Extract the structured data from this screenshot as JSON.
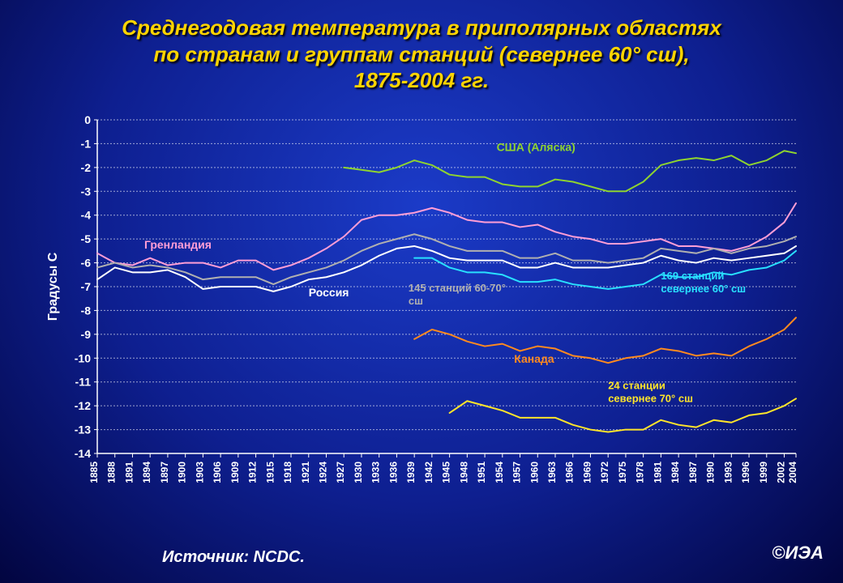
{
  "title_lines": [
    "Среднегодовая температура в приполярных областях",
    "по странам и группам станций (севернее 60° сш),",
    "1875-2004 гг."
  ],
  "source": "Источник: NCDC.",
  "copyright": "©ИЭА",
  "chart": {
    "type": "line",
    "ylabel": "Градусы C",
    "ylabel_color": "#ffffff",
    "ylabel_fontsize": 16,
    "ylim": [
      -14,
      0
    ],
    "ytick_step": 1,
    "ytick_color": "#ffffff",
    "ytick_fontsize": 14,
    "x_start_year": 1885,
    "x_end_year": 2004,
    "xtick_step": 3,
    "xtick_label_end": "2004",
    "xtick_color": "#ffffff",
    "xtick_fontsize": 12,
    "axis_color": "#ffffff",
    "grid_color": "#ffffff",
    "grid_dash": "2 2",
    "grid_width": 1,
    "background": "transparent",
    "line_width": 2,
    "series": [
      {
        "name": "Гренландия",
        "color": "#ff9ed6",
        "label_color": "#ff9ed6",
        "label_x": 1893,
        "label_y": -5.4,
        "label_fontsize": 14,
        "data": [
          [
            1885,
            -5.6
          ],
          [
            1888,
            -6.0
          ],
          [
            1891,
            -6.1
          ],
          [
            1894,
            -5.8
          ],
          [
            1897,
            -6.1
          ],
          [
            1900,
            -6.0
          ],
          [
            1903,
            -6.0
          ],
          [
            1906,
            -6.2
          ],
          [
            1909,
            -5.9
          ],
          [
            1912,
            -5.9
          ],
          [
            1915,
            -6.3
          ],
          [
            1918,
            -6.1
          ],
          [
            1921,
            -5.8
          ],
          [
            1924,
            -5.4
          ],
          [
            1927,
            -4.9
          ],
          [
            1930,
            -4.2
          ],
          [
            1933,
            -4.0
          ],
          [
            1936,
            -4.0
          ],
          [
            1939,
            -3.9
          ],
          [
            1942,
            -3.7
          ],
          [
            1945,
            -3.9
          ],
          [
            1948,
            -4.2
          ],
          [
            1951,
            -4.3
          ],
          [
            1954,
            -4.3
          ],
          [
            1957,
            -4.5
          ],
          [
            1960,
            -4.4
          ],
          [
            1963,
            -4.7
          ],
          [
            1966,
            -4.9
          ],
          [
            1969,
            -5.0
          ],
          [
            1972,
            -5.2
          ],
          [
            1975,
            -5.2
          ],
          [
            1978,
            -5.1
          ],
          [
            1981,
            -5.0
          ],
          [
            1984,
            -5.3
          ],
          [
            1987,
            -5.3
          ],
          [
            1990,
            -5.4
          ],
          [
            1993,
            -5.5
          ],
          [
            1996,
            -5.3
          ],
          [
            1999,
            -4.9
          ],
          [
            2002,
            -4.3
          ],
          [
            2004,
            -3.5
          ]
        ]
      },
      {
        "name": "США (Аляска)",
        "color": "#8fd42f",
        "label_color": "#8fd42f",
        "label_x": 1953,
        "label_y": -1.3,
        "label_fontsize": 14,
        "data": [
          [
            1927,
            -2.0
          ],
          [
            1930,
            -2.1
          ],
          [
            1933,
            -2.2
          ],
          [
            1936,
            -2.0
          ],
          [
            1939,
            -1.7
          ],
          [
            1942,
            -1.9
          ],
          [
            1945,
            -2.3
          ],
          [
            1948,
            -2.4
          ],
          [
            1951,
            -2.4
          ],
          [
            1954,
            -2.7
          ],
          [
            1957,
            -2.8
          ],
          [
            1960,
            -2.8
          ],
          [
            1963,
            -2.5
          ],
          [
            1966,
            -2.6
          ],
          [
            1969,
            -2.8
          ],
          [
            1972,
            -3.0
          ],
          [
            1975,
            -3.0
          ],
          [
            1978,
            -2.6
          ],
          [
            1981,
            -1.9
          ],
          [
            1984,
            -1.7
          ],
          [
            1987,
            -1.6
          ],
          [
            1990,
            -1.7
          ],
          [
            1993,
            -1.5
          ],
          [
            1996,
            -1.9
          ],
          [
            1999,
            -1.7
          ],
          [
            2002,
            -1.3
          ],
          [
            2004,
            -1.4
          ]
        ]
      },
      {
        "name": "Россия",
        "color": "#ffffff",
        "label_color": "#ffffff",
        "label_x": 1921,
        "label_y": -7.4,
        "label_fontsize": 14,
        "data": [
          [
            1885,
            -6.7
          ],
          [
            1888,
            -6.2
          ],
          [
            1891,
            -6.4
          ],
          [
            1894,
            -6.4
          ],
          [
            1897,
            -6.3
          ],
          [
            1900,
            -6.6
          ],
          [
            1903,
            -7.1
          ],
          [
            1906,
            -7.0
          ],
          [
            1909,
            -7.0
          ],
          [
            1912,
            -7.0
          ],
          [
            1915,
            -7.2
          ],
          [
            1918,
            -7.0
          ],
          [
            1921,
            -6.7
          ],
          [
            1924,
            -6.6
          ],
          [
            1927,
            -6.4
          ],
          [
            1930,
            -6.1
          ],
          [
            1933,
            -5.7
          ],
          [
            1936,
            -5.4
          ],
          [
            1939,
            -5.3
          ],
          [
            1942,
            -5.5
          ],
          [
            1945,
            -5.8
          ],
          [
            1948,
            -5.9
          ],
          [
            1951,
            -5.9
          ],
          [
            1954,
            -5.9
          ],
          [
            1957,
            -6.2
          ],
          [
            1960,
            -6.2
          ],
          [
            1963,
            -6.0
          ],
          [
            1966,
            -6.2
          ],
          [
            1969,
            -6.2
          ],
          [
            1972,
            -6.2
          ],
          [
            1975,
            -6.1
          ],
          [
            1978,
            -6.0
          ],
          [
            1981,
            -5.7
          ],
          [
            1984,
            -5.9
          ],
          [
            1987,
            -6.0
          ],
          [
            1990,
            -5.8
          ],
          [
            1993,
            -5.9
          ],
          [
            1996,
            -5.8
          ],
          [
            1999,
            -5.7
          ],
          [
            2002,
            -5.6
          ],
          [
            2004,
            -5.3
          ]
        ]
      },
      {
        "name": "145 станций 60-70° сш",
        "color": "#b0b0b0",
        "label_color": "#b0b0b0",
        "label_x": 1938,
        "label_y": -7.2,
        "label_fontsize": 13,
        "label_lines": [
          "145 станций 60-70°",
          "сш"
        ],
        "data": [
          [
            1885,
            -6.2
          ],
          [
            1888,
            -6.0
          ],
          [
            1891,
            -6.2
          ],
          [
            1894,
            -6.1
          ],
          [
            1897,
            -6.2
          ],
          [
            1900,
            -6.4
          ],
          [
            1903,
            -6.7
          ],
          [
            1906,
            -6.6
          ],
          [
            1909,
            -6.6
          ],
          [
            1912,
            -6.6
          ],
          [
            1915,
            -6.9
          ],
          [
            1918,
            -6.6
          ],
          [
            1921,
            -6.4
          ],
          [
            1924,
            -6.2
          ],
          [
            1927,
            -5.9
          ],
          [
            1930,
            -5.5
          ],
          [
            1933,
            -5.2
          ],
          [
            1936,
            -5.0
          ],
          [
            1939,
            -4.8
          ],
          [
            1942,
            -5.0
          ],
          [
            1945,
            -5.3
          ],
          [
            1948,
            -5.5
          ],
          [
            1951,
            -5.5
          ],
          [
            1954,
            -5.5
          ],
          [
            1957,
            -5.8
          ],
          [
            1960,
            -5.8
          ],
          [
            1963,
            -5.6
          ],
          [
            1966,
            -5.9
          ],
          [
            1969,
            -5.9
          ],
          [
            1972,
            -6.0
          ],
          [
            1975,
            -5.9
          ],
          [
            1978,
            -5.8
          ],
          [
            1981,
            -5.4
          ],
          [
            1984,
            -5.5
          ],
          [
            1987,
            -5.6
          ],
          [
            1990,
            -5.4
          ],
          [
            1993,
            -5.6
          ],
          [
            1996,
            -5.4
          ],
          [
            1999,
            -5.3
          ],
          [
            2002,
            -5.1
          ],
          [
            2004,
            -4.9
          ]
        ]
      },
      {
        "name": "169 станций севернее 60° сш",
        "color": "#29e0ff",
        "label_color": "#29e0ff",
        "label_x": 1981,
        "label_y": -6.7,
        "label_fontsize": 13,
        "label_lines": [
          "169 станций",
          "севернее 60° сш"
        ],
        "data": [
          [
            1939,
            -5.8
          ],
          [
            1942,
            -5.8
          ],
          [
            1945,
            -6.2
          ],
          [
            1948,
            -6.4
          ],
          [
            1951,
            -6.4
          ],
          [
            1954,
            -6.5
          ],
          [
            1957,
            -6.8
          ],
          [
            1960,
            -6.8
          ],
          [
            1963,
            -6.7
          ],
          [
            1966,
            -6.9
          ],
          [
            1969,
            -7.0
          ],
          [
            1972,
            -7.1
          ],
          [
            1975,
            -7.0
          ],
          [
            1978,
            -6.9
          ],
          [
            1981,
            -6.5
          ],
          [
            1984,
            -6.6
          ],
          [
            1987,
            -6.6
          ],
          [
            1990,
            -6.4
          ],
          [
            1993,
            -6.5
          ],
          [
            1996,
            -6.3
          ],
          [
            1999,
            -6.2
          ],
          [
            2002,
            -5.9
          ],
          [
            2004,
            -5.5
          ]
        ]
      },
      {
        "name": "Канада",
        "color": "#ff8a1f",
        "label_color": "#ff8a1f",
        "label_x": 1956,
        "label_y": -10.2,
        "label_fontsize": 14,
        "data": [
          [
            1939,
            -9.2
          ],
          [
            1942,
            -8.8
          ],
          [
            1945,
            -9.0
          ],
          [
            1948,
            -9.3
          ],
          [
            1951,
            -9.5
          ],
          [
            1954,
            -9.4
          ],
          [
            1957,
            -9.7
          ],
          [
            1960,
            -9.5
          ],
          [
            1963,
            -9.6
          ],
          [
            1966,
            -9.9
          ],
          [
            1969,
            -10.0
          ],
          [
            1972,
            -10.2
          ],
          [
            1975,
            -10.0
          ],
          [
            1978,
            -9.9
          ],
          [
            1981,
            -9.6
          ],
          [
            1984,
            -9.7
          ],
          [
            1987,
            -9.9
          ],
          [
            1990,
            -9.8
          ],
          [
            1993,
            -9.9
          ],
          [
            1996,
            -9.5
          ],
          [
            1999,
            -9.2
          ],
          [
            2002,
            -8.8
          ],
          [
            2004,
            -8.3
          ]
        ]
      },
      {
        "name": "24 станции севернее 70° сш",
        "color": "#ffe52a",
        "label_color": "#ffe52a",
        "label_x": 1972,
        "label_y": -11.3,
        "label_fontsize": 13,
        "label_lines": [
          "24 станции",
          "севернее 70° сш"
        ],
        "data": [
          [
            1945,
            -12.3
          ],
          [
            1948,
            -11.8
          ],
          [
            1951,
            -12.0
          ],
          [
            1954,
            -12.2
          ],
          [
            1957,
            -12.5
          ],
          [
            1960,
            -12.5
          ],
          [
            1963,
            -12.5
          ],
          [
            1966,
            -12.8
          ],
          [
            1969,
            -13.0
          ],
          [
            1972,
            -13.1
          ],
          [
            1975,
            -13.0
          ],
          [
            1978,
            -13.0
          ],
          [
            1981,
            -12.6
          ],
          [
            1984,
            -12.8
          ],
          [
            1987,
            -12.9
          ],
          [
            1990,
            -12.6
          ],
          [
            1993,
            -12.7
          ],
          [
            1996,
            -12.4
          ],
          [
            1999,
            -12.3
          ],
          [
            2002,
            -12.0
          ],
          [
            2004,
            -11.7
          ]
        ]
      }
    ]
  }
}
